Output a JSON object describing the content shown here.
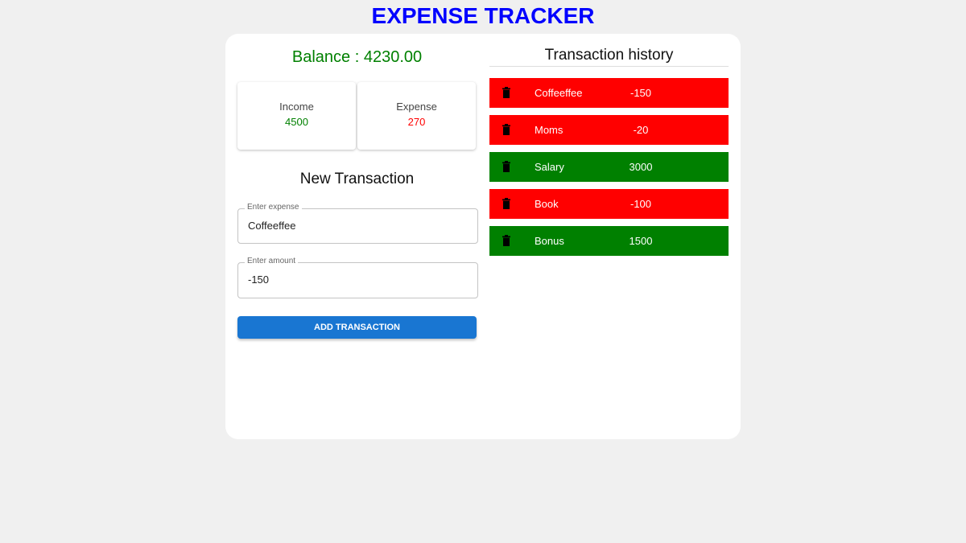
{
  "app_title": "EXPENSE TRACKER",
  "balance_text": "Balance : 4230.00",
  "summary": {
    "income_label": "Income",
    "income_value": "4500",
    "expense_label": "Expense",
    "expense_value": "270"
  },
  "form": {
    "heading": "New Transaction",
    "text_label": "Enter expense",
    "text_value": "Coffeeffee",
    "amount_label": "Enter amount",
    "amount_value": "-150",
    "submit_label": "ADD TRANSACTION"
  },
  "history": {
    "heading": "Transaction history",
    "items": [
      {
        "name": "Coffeeffee",
        "amount": "-150",
        "type": "expense"
      },
      {
        "name": "Moms",
        "amount": "-20",
        "type": "expense"
      },
      {
        "name": "Salary",
        "amount": "3000",
        "type": "income"
      },
      {
        "name": "Book",
        "amount": "-100",
        "type": "expense"
      },
      {
        "name": "Bonus",
        "amount": "1500",
        "type": "income"
      }
    ]
  },
  "colors": {
    "title": "#0000ff",
    "income": "#008000",
    "expense": "#ff0000",
    "button": "#1976d2"
  },
  "icons": {
    "delete": "trash-icon"
  }
}
